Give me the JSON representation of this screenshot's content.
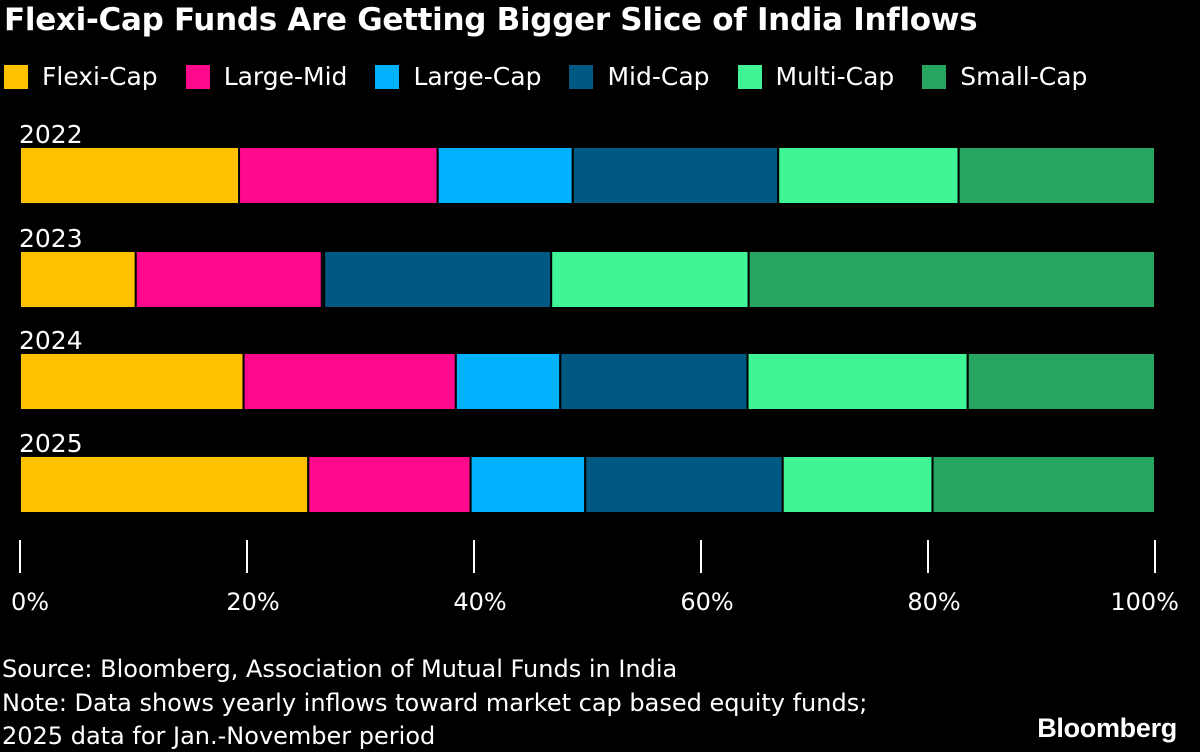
{
  "chart_data": {
    "type": "bar",
    "orientation": "horizontal",
    "stacked": true,
    "title": "Flexi-Cap Funds Are Getting Bigger Slice of India Inflows",
    "categories": [
      "2022",
      "2023",
      "2024",
      "2025"
    ],
    "series": [
      {
        "name": "Flexi-Cap",
        "color": "#ffc000",
        "values": [
          19.3,
          10.2,
          19.7,
          25.4
        ]
      },
      {
        "name": "Large-Mid",
        "color": "#ff0a8c",
        "values": [
          17.5,
          16.4,
          18.7,
          14.3
        ]
      },
      {
        "name": "Large-Cap",
        "color": "#00b2ff",
        "values": [
          11.9,
          0.2,
          9.2,
          10.1
        ]
      },
      {
        "name": "Mid-Cap",
        "color": "#005980",
        "values": [
          18.1,
          20.0,
          16.5,
          17.4
        ]
      },
      {
        "name": "Multi-Cap",
        "color": "#3ff596",
        "values": [
          15.9,
          17.4,
          19.4,
          13.2
        ]
      },
      {
        "name": "Small-Cap",
        "color": "#25a55f",
        "values": [
          17.3,
          35.8,
          16.5,
          19.6
        ]
      }
    ],
    "xlim": [
      0,
      100
    ],
    "ticks": [
      "0%",
      "20%",
      "40%",
      "60%",
      "80%",
      "100%"
    ],
    "legend_position": "top",
    "grid": false
  },
  "footer": {
    "source": "Source: Bloomberg, Association of Mutual Funds in India",
    "note_line1": "Note: Data shows yearly inflows toward market cap based equity funds;",
    "note_line2": "2025 data for Jan.-November period"
  },
  "brand": "Bloomberg"
}
